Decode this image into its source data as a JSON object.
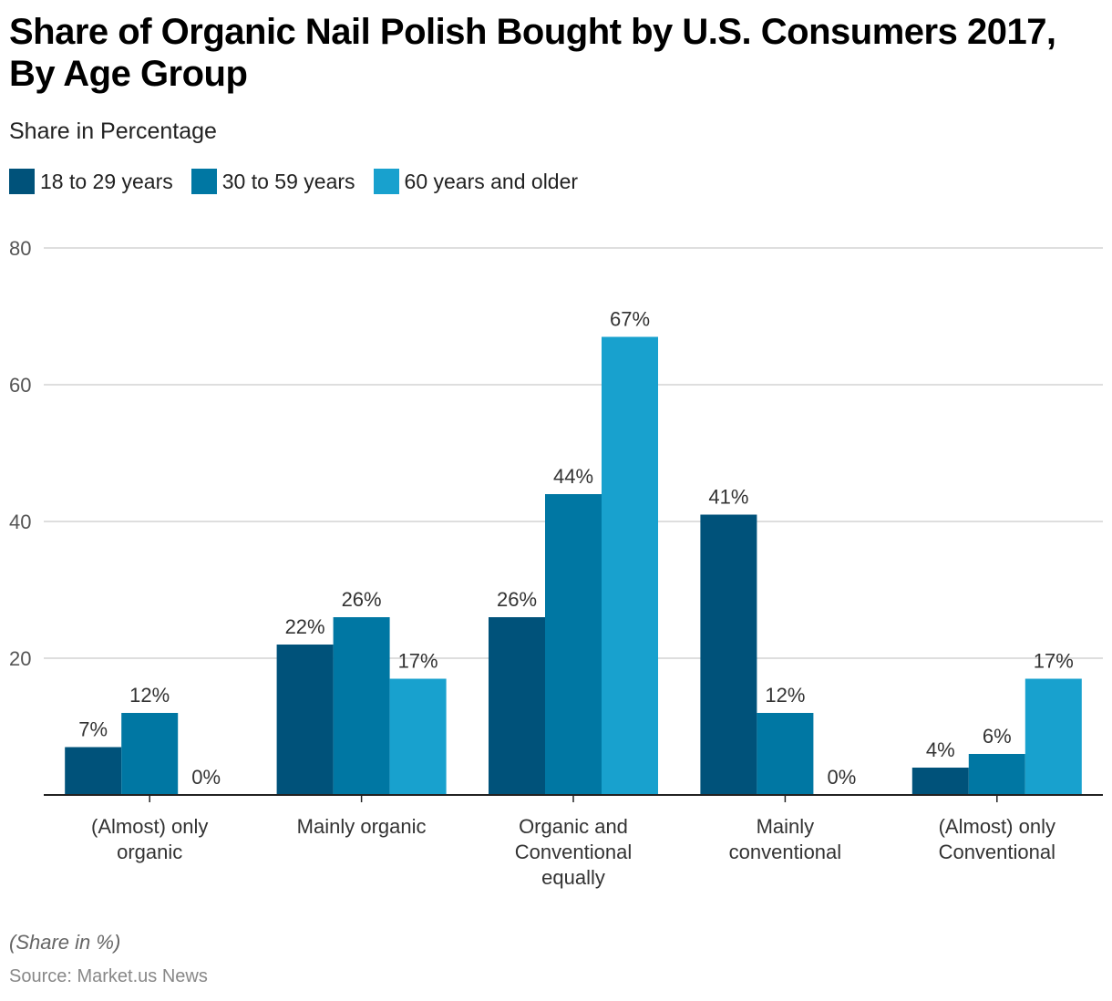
{
  "header": {
    "title": "Share of Organic Nail Polish Bought by U.S. Consumers 2017, By Age Group",
    "subtitle": "Share in Percentage"
  },
  "footer": {
    "note": "(Share in %)",
    "source": "Source: Market.us News"
  },
  "chart_data": {
    "type": "bar",
    "title": "Share of Organic Nail Polish Bought by U.S. Consumers 2017, By Age Group",
    "subtitle": "Share in Percentage",
    "xlabel": "",
    "ylabel": "",
    "ylim": [
      0,
      80
    ],
    "yticks": [
      20,
      40,
      60,
      80
    ],
    "grid": true,
    "legend_position": "top-left",
    "value_suffix": "%",
    "categories": [
      [
        "(Almost) only",
        "organic"
      ],
      [
        "Mainly organic"
      ],
      [
        "Organic and",
        "Conventional",
        "equally"
      ],
      [
        "Mainly",
        "conventional"
      ],
      [
        "(Almost) only",
        "Conventional"
      ]
    ],
    "series": [
      {
        "name": "18 to 29 years",
        "color": "#00527a",
        "values": [
          7,
          22,
          26,
          41,
          4
        ]
      },
      {
        "name": "30 to 59 years",
        "color": "#0077a3",
        "values": [
          12,
          26,
          44,
          12,
          6
        ]
      },
      {
        "name": "60 years and older",
        "color": "#18a1ce",
        "values": [
          0,
          17,
          67,
          0,
          17
        ]
      }
    ]
  }
}
